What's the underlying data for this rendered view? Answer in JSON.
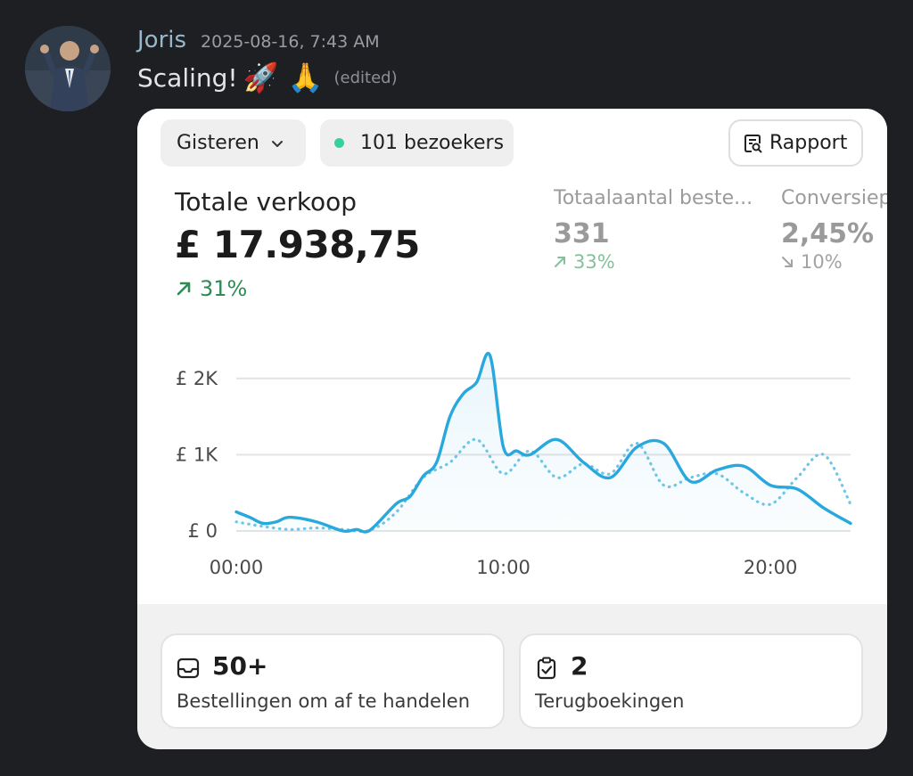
{
  "message": {
    "username": "Joris",
    "timestamp": "2025-08-16, 7:43 AM",
    "text": "Scaling!",
    "emojis": "🚀 🙏",
    "edited_label": "(edited)"
  },
  "card": {
    "period_label": "Gisteren",
    "visitors_label": "101 bezoekers",
    "report_label": "Rapport",
    "main_metric": {
      "label": "Totale verkoop",
      "value": "£ 17.938,75",
      "change": "31%"
    },
    "side_metrics": [
      {
        "label": "Totaalaantal beste...",
        "value": "331",
        "change": "33%",
        "direction": "up"
      },
      {
        "label": "Conversiep",
        "value": "2,45%",
        "change": "10%",
        "direction": "down"
      }
    ],
    "tiles": [
      {
        "value": "50+",
        "label": "Bestellingen om af te handelen",
        "icon": "inbox-icon"
      },
      {
        "value": "2",
        "label": "Terugboekingen",
        "icon": "clipboard-check-icon"
      }
    ]
  },
  "colors": {
    "accent": "#29a8dd",
    "positive": "#2f8a56",
    "visitor_dot": "#34d399"
  },
  "chart_data": {
    "type": "line",
    "x_ticks": [
      "00:00",
      "10:00",
      "20:00"
    ],
    "y_ticks": [
      "£ 0",
      "£ 1K",
      "£ 2K"
    ],
    "ylim": [
      0,
      2500
    ],
    "xlim": [
      0,
      23
    ],
    "grid": true,
    "series": [
      {
        "style": "solid",
        "x": [
          0,
          0.5,
          1,
          1.5,
          2,
          3,
          4,
          4.5,
          5,
          6,
          6.5,
          7,
          7.5,
          8,
          8.5,
          9,
          9.5,
          10,
          10.5,
          11,
          12,
          13,
          14,
          15,
          16,
          17,
          18,
          19,
          20,
          21,
          22,
          23
        ],
        "values": [
          250,
          180,
          100,
          120,
          180,
          120,
          0,
          20,
          10,
          360,
          450,
          720,
          900,
          1500,
          1800,
          1950,
          2300,
          1100,
          1050,
          1000,
          1200,
          900,
          700,
          1100,
          1150,
          650,
          800,
          850,
          600,
          550,
          300,
          100
        ]
      },
      {
        "style": "dotted",
        "x": [
          0,
          1,
          2,
          3,
          4,
          5,
          6,
          7,
          8,
          9,
          10,
          11,
          12,
          13,
          14,
          15,
          16,
          17,
          18,
          19,
          20,
          21,
          22,
          23
        ],
        "values": [
          120,
          60,
          20,
          40,
          20,
          10,
          250,
          700,
          900,
          1200,
          750,
          1050,
          700,
          880,
          750,
          1150,
          600,
          700,
          750,
          500,
          350,
          700,
          1000,
          350
        ]
      }
    ]
  }
}
